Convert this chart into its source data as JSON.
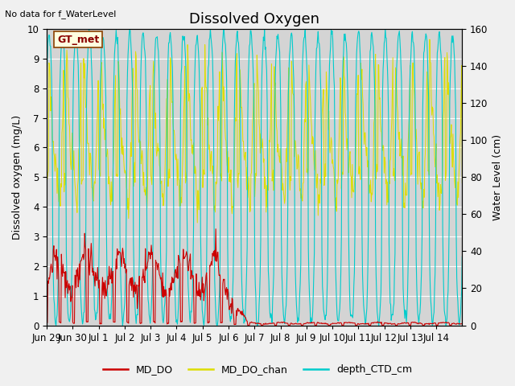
{
  "title": "Dissolved Oxygen",
  "top_left_note": "No data for f_WaterLevel",
  "box_label": "GT_met",
  "ylabel_left": "Dissolved oxygen (mg/L)",
  "ylabel_right": "Water Level (cm)",
  "ylim_left": [
    0,
    10.0
  ],
  "ylim_right": [
    0,
    160
  ],
  "yticks_left": [
    0.0,
    1.0,
    2.0,
    3.0,
    4.0,
    5.0,
    6.0,
    7.0,
    8.0,
    9.0,
    10.0
  ],
  "yticks_right": [
    0,
    20,
    40,
    60,
    80,
    100,
    120,
    140,
    160
  ],
  "xlabel_dates": [
    "Jun 29",
    "Jun 30",
    "Jul 1",
    "Jul 2",
    "Jul 3",
    "Jul 4",
    "Jul 5",
    "Jul 6",
    "Jul 7",
    "Jul 8",
    "Jul 9",
    "Jul 10",
    "Jul 11",
    "Jul 12",
    "Jul 13",
    "Jul 14"
  ],
  "legend_entries": [
    "MD_DO",
    "MD_DO_chan",
    "depth_CTD_cm"
  ],
  "legend_colors": [
    "#cc0000",
    "#dddd00",
    "#00cccc"
  ],
  "line_colors": {
    "MD_DO": "#cc0000",
    "MD_DO_chan": "#dddd00",
    "depth_CTD_cm": "#00cccc"
  },
  "fig_bg_color": "#f0f0f0",
  "plot_bg_color": "#d4d4d4",
  "grid_color": "#ffffff",
  "title_fontsize": 13,
  "label_fontsize": 9,
  "tick_fontsize": 8.5
}
